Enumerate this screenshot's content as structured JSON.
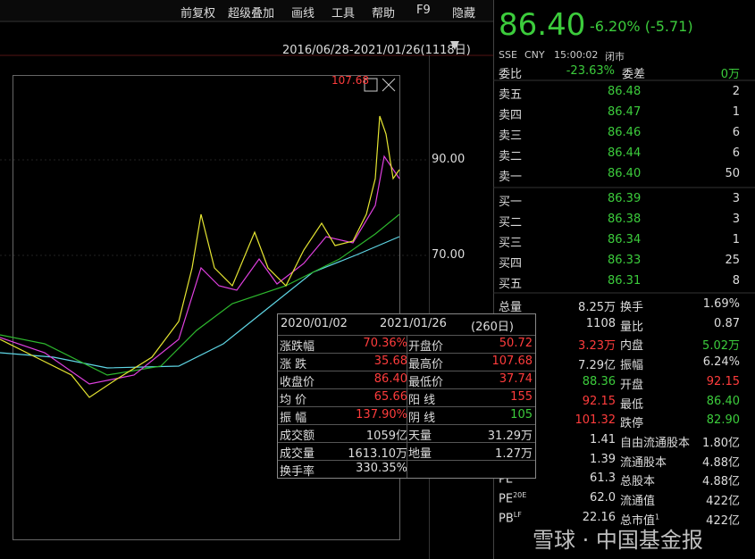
{
  "toolbar": [
    "前复权",
    "超级叠加",
    "画线",
    "工具",
    "帮助",
    "F9",
    "隐藏"
  ],
  "chart": {
    "range": "2016/06/28-2021/01/26(1118日)",
    "high_label": "107.68",
    "price_ticks": [
      "90.00",
      "70.00"
    ]
  },
  "quote": {
    "price": "86.40",
    "change": "-6.20% (-5.71)",
    "exchange": "SSE",
    "currency": "CNY",
    "time": "15:00:02",
    "status": "闭市"
  },
  "order_ratio": {
    "label": "委比",
    "value": "-23.63%",
    "diff_label": "委差",
    "diff": "0万"
  },
  "asks": [
    {
      "label": "卖五",
      "price": "86.48",
      "volume": "2"
    },
    {
      "label": "卖四",
      "price": "86.47",
      "volume": "1"
    },
    {
      "label": "卖三",
      "price": "86.46",
      "volume": "6"
    },
    {
      "label": "卖二",
      "price": "86.44",
      "volume": "6"
    },
    {
      "label": "卖一",
      "price": "86.40",
      "volume": "50"
    }
  ],
  "bids": [
    {
      "label": "买一",
      "price": "86.39",
      "volume": "3"
    },
    {
      "label": "买二",
      "price": "86.38",
      "volume": "3"
    },
    {
      "label": "买三",
      "price": "86.34",
      "volume": "1"
    },
    {
      "label": "买四",
      "price": "86.33",
      "volume": "25"
    },
    {
      "label": "买五",
      "price": "86.31",
      "volume": "8"
    }
  ],
  "stats": [
    {
      "label": "总量",
      "value": "8.25万",
      "label2": "换手",
      "value2": "1.69%"
    },
    {
      "value": "1108",
      "label2": "量比",
      "value2": "0.87"
    },
    {
      "value": "3.23万",
      "label2": "内盘",
      "value2": "5.02万"
    },
    {
      "value": "7.29亿",
      "label2": "振幅",
      "value2": "6.24%"
    },
    {
      "value": "88.36",
      "label2": "开盘",
      "value2": "92.15"
    },
    {
      "value": "92.15",
      "label2": "最低",
      "value2": "86.40"
    },
    {
      "value": "101.32",
      "label2": "跌停",
      "value2": "82.90"
    },
    {
      "value": "1.41",
      "label2": "自由流通股本",
      "value2": "1.80亿"
    },
    {
      "value": "1.39",
      "label2": "流通股本",
      "value2": "4.88亿"
    },
    {
      "label": "PE",
      "label_sup": "TTM",
      "value": "61.3",
      "label2": "总股本",
      "value2": "4.88亿"
    },
    {
      "label": "PE",
      "label_sup": "20E",
      "value": "62.0",
      "label2": "流通值",
      "value2": "422亿"
    },
    {
      "label": "PB",
      "label_sup": "LF",
      "value": "22.16",
      "label2": "总市值",
      "label2_sup": "1",
      "value2": "422亿"
    }
  ],
  "popup": {
    "start": "2020/01/02",
    "end": "2021/01/26",
    "days": "(260日)",
    "rows": [
      [
        "涨跌幅",
        "70.36%",
        "开盘价",
        "50.72"
      ],
      [
        "涨 跌",
        "35.68",
        "最高价",
        "107.68"
      ],
      [
        "收盘价",
        "86.40",
        "最低价",
        "37.74"
      ],
      [
        "均 价",
        "65.66",
        "阳 线",
        "155"
      ],
      [
        "振 幅",
        "137.90%",
        "阴 线",
        "105"
      ],
      [
        "成交额",
        "1059亿",
        "天量",
        "31.29万"
      ],
      [
        "成交量",
        "1613.10万",
        "地量",
        "1.27万"
      ],
      [
        "换手率",
        "330.35%"
      ]
    ]
  },
  "watermark": "雪球 · 中国基金报"
}
